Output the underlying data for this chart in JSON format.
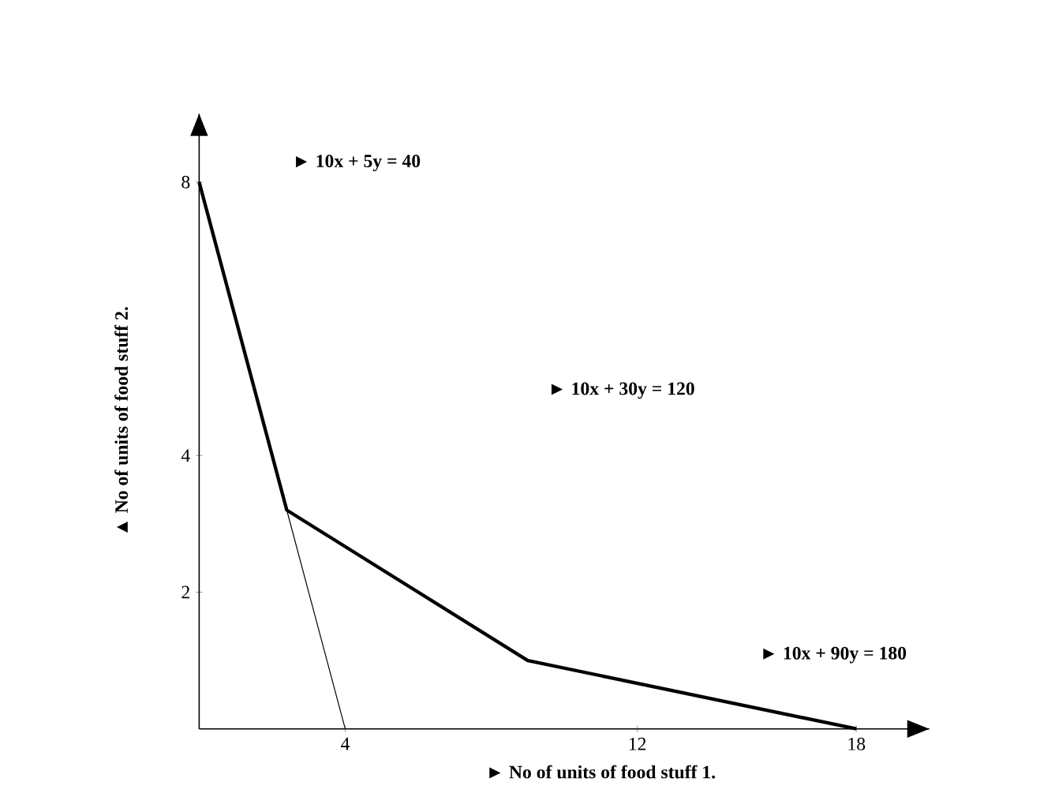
{
  "chart_data": {
    "type": "line",
    "xlabel": "► No of units of food stuff 1.",
    "ylabel": "▲ No of units of food stuff 2.",
    "series": [
      {
        "color": "#000000",
        "x": [
          0,
          2.4,
          9,
          18
        ],
        "values": [
          8,
          3.2,
          1,
          0
        ]
      },
      {
        "color": "#000000",
        "x": [
          2.4,
          4
        ],
        "values": [
          3.2,
          0
        ]
      }
    ],
    "xlim": [
      0,
      20
    ],
    "ylim": [
      0,
      9
    ],
    "xticks": [
      4,
      12,
      18
    ],
    "yticks": [
      2,
      4,
      8
    ],
    "annotations": [
      "► 10x + 5y = 40",
      "► 10x + 30y = 120",
      "► 10x + 90y = 180"
    ],
    "marker": "none",
    "line_style": "solid"
  }
}
